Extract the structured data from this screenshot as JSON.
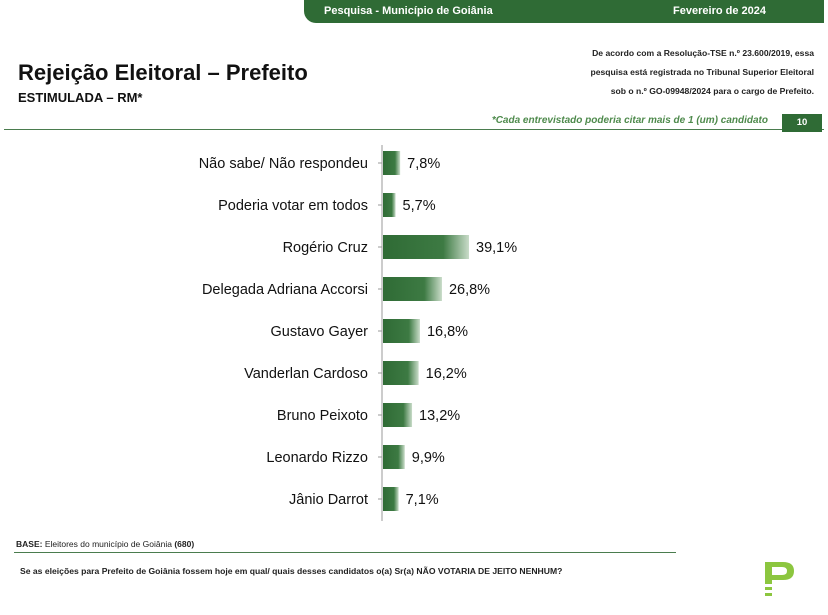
{
  "header": {
    "survey_label": "Pesquisa - Município de Goiânia",
    "date_label": "Fevereiro de 2024"
  },
  "title": "Rejeição Eleitoral – Prefeito",
  "subtitle": "ESTIMULADA – RM*",
  "registration_notice": {
    "line1": "De acordo com a Resolução-TSE n.º 23.600/2019, essa",
    "line2": "pesquisa está registrada no Tribunal Superior Eleitoral",
    "line3": "sob o n.º GO-09948/2024 para o cargo de Prefeito."
  },
  "footnote": "*Cada entrevistado poderia citar mais de 1 (um) candidato",
  "page_number": "10",
  "chart_data": {
    "type": "bar",
    "orientation": "horizontal",
    "categories": [
      "Não sabe/ Não respondeu",
      "Poderia votar em todos",
      "Rogério Cruz",
      "Delegada Adriana Accorsi",
      "Gustavo Gayer",
      "Vanderlan Cardoso",
      "Bruno Peixoto",
      "Leonardo Rizzo",
      "Jânio Darrot"
    ],
    "values": [
      7.8,
      5.7,
      39.1,
      26.8,
      16.8,
      16.2,
      13.2,
      9.9,
      7.1
    ],
    "value_labels": [
      "7,8%",
      "5,7%",
      "39,1%",
      "26,8%",
      "16,8%",
      "16,2%",
      "13,2%",
      "9,9%",
      "7,1%"
    ],
    "bar_color": "#2f6b35",
    "grid": false
  },
  "base": {
    "label": "BASE:",
    "text": "Eleitores do município de Goiânia",
    "count": "(680)"
  },
  "question": "Se as eleições para Prefeito de Goiânia fossem hoje em qual/ quais desses candidatos o(a) Sr(a) NÃO VOTARIA DE JEITO NENHUM?",
  "colors": {
    "primary_green": "#2f6b35",
    "footnote_green": "#4e8a4c"
  }
}
